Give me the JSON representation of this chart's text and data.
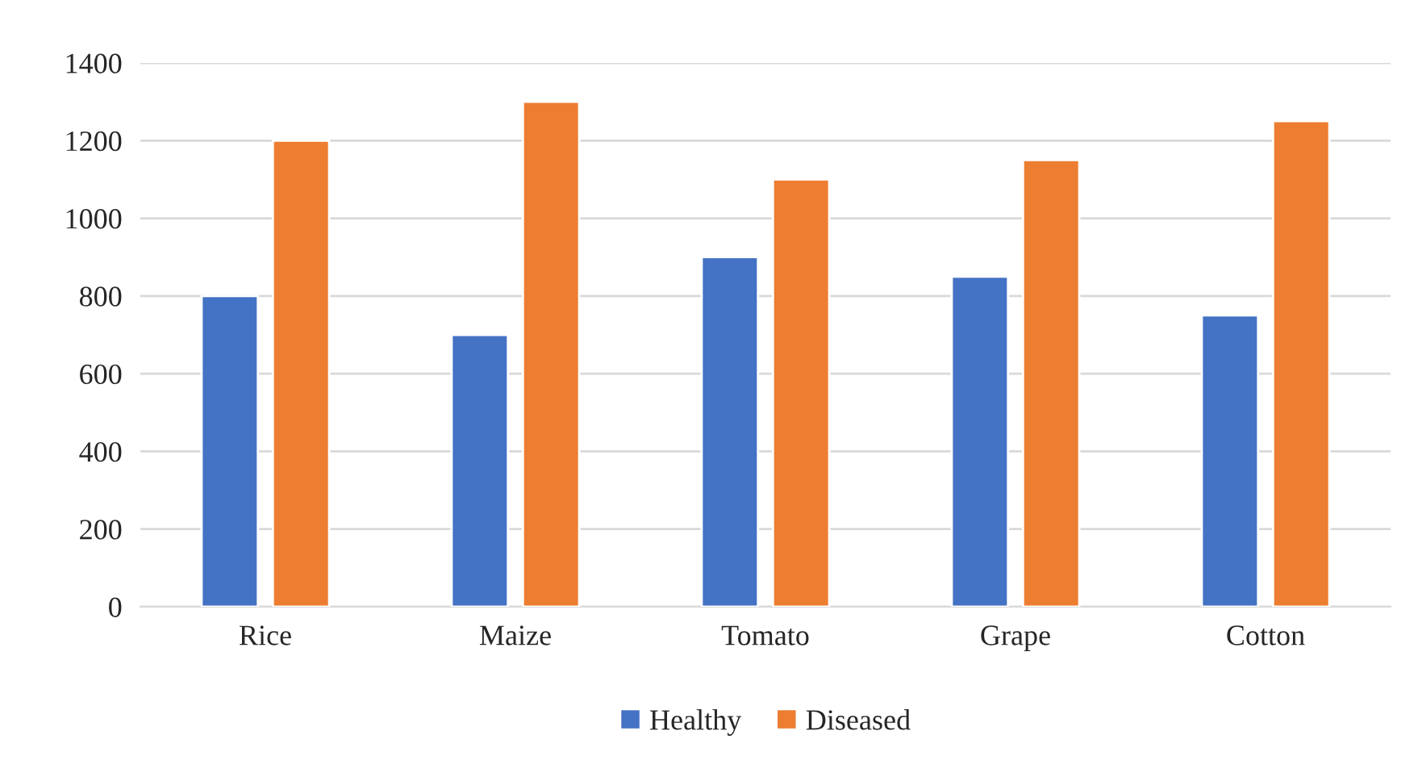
{
  "chart_data": {
    "type": "bar",
    "categories": [
      "Rice",
      "Maize",
      "Tomato",
      "Grape",
      "Cotton"
    ],
    "series": [
      {
        "name": "Healthy",
        "color": "#4472c4",
        "values": [
          800,
          700,
          900,
          850,
          750
        ]
      },
      {
        "name": "Diseased",
        "color": "#ed7d31",
        "values": [
          1200,
          1300,
          1100,
          1150,
          1250
        ]
      }
    ],
    "ylim": [
      0,
      1400
    ],
    "yticks": [
      0,
      200,
      400,
      600,
      800,
      1000,
      1200,
      1400
    ],
    "grid": "y",
    "legend": "bottom"
  }
}
